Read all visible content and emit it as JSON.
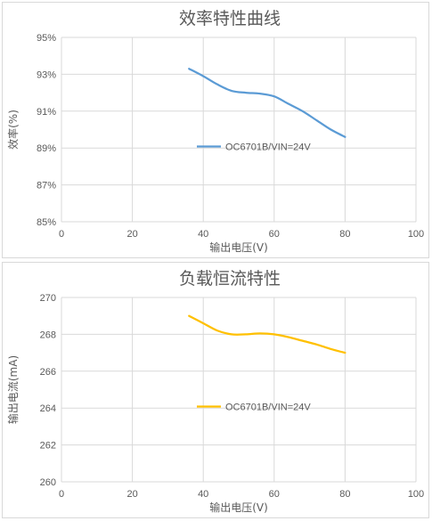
{
  "chart_data": [
    {
      "type": "line",
      "title": "效率特性曲线",
      "xlabel": "输出电压(V)",
      "ylabel": "效率(%)",
      "xlim": [
        0,
        100
      ],
      "ylim": [
        85,
        95
      ],
      "x_ticks": [
        0,
        20,
        40,
        60,
        80,
        100
      ],
      "y_ticks": [
        85,
        87,
        89,
        91,
        93,
        95
      ],
      "x_tick_labels": [
        "0",
        "20",
        "40",
        "60",
        "80",
        "100"
      ],
      "y_tick_labels": [
        "85%",
        "87%",
        "89%",
        "91%",
        "93%",
        "95%"
      ],
      "grid": true,
      "legend": "center-left",
      "series": [
        {
          "name": "OC6701B/VIN=24V",
          "color": "#5b9bd5",
          "x": [
            36,
            40,
            44,
            48,
            52,
            56,
            60,
            64,
            68,
            72,
            76,
            80
          ],
          "y": [
            93.3,
            92.9,
            92.45,
            92.1,
            92.0,
            91.95,
            91.8,
            91.4,
            91.0,
            90.5,
            90.0,
            89.6
          ]
        }
      ]
    },
    {
      "type": "line",
      "title": "负载恒流特性",
      "xlabel": "输出电压(V)",
      "ylabel": "输出电流(mA)",
      "xlim": [
        0,
        100
      ],
      "ylim": [
        260,
        270
      ],
      "x_ticks": [
        0,
        20,
        40,
        60,
        80,
        100
      ],
      "y_ticks": [
        260,
        262,
        264,
        266,
        268,
        270
      ],
      "x_tick_labels": [
        "0",
        "20",
        "40",
        "60",
        "80",
        "100"
      ],
      "y_tick_labels": [
        "260",
        "262",
        "264",
        "266",
        "268",
        "270"
      ],
      "grid": true,
      "legend": "center-left",
      "series": [
        {
          "name": "OC6701B/VIN=24V",
          "color": "#ffc000",
          "x": [
            36,
            40,
            44,
            48,
            52,
            56,
            60,
            64,
            68,
            72,
            76,
            80
          ],
          "y": [
            269.0,
            268.6,
            268.2,
            268.0,
            268.0,
            268.05,
            268.0,
            267.85,
            267.65,
            267.45,
            267.2,
            267.0
          ]
        }
      ]
    }
  ]
}
